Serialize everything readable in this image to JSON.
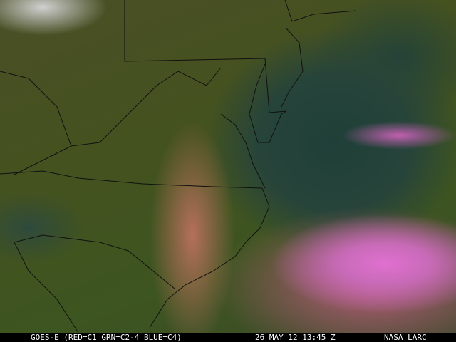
{
  "caption": {
    "satellite": "GOES-E (RED=C1 GRN=C2-4 BLUE=C4)",
    "datetime": "26 MAY 12 13:45 Z",
    "credit": "NASA LARC"
  }
}
